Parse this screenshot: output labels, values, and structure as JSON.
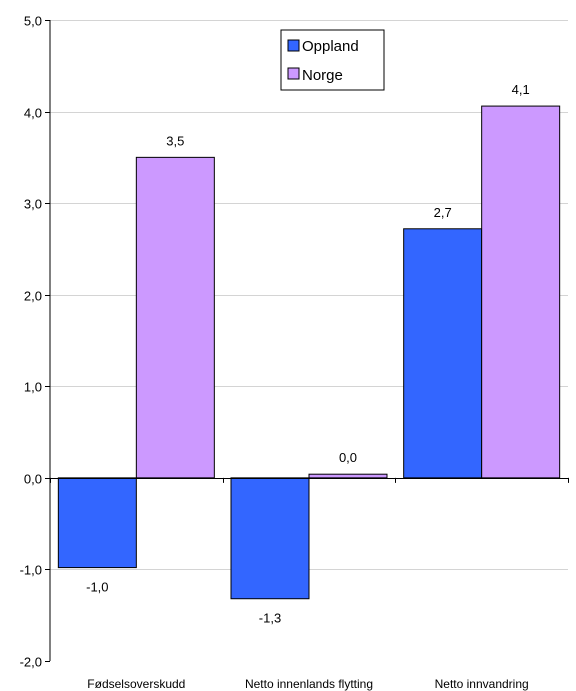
{
  "chart_data": {
    "type": "bar",
    "title": "",
    "xlabel": "",
    "ylabel": "",
    "ylim": [
      -2.0,
      5.0
    ],
    "ytick_step": 1.0,
    "grid": true,
    "legend_position": "top-center",
    "categories": [
      "Fødselsoverskudd",
      "Netto innenlands flytting",
      "Netto innvandring"
    ],
    "series": [
      {
        "name": "Oppland",
        "color": "#3366ff",
        "values": [
          -0.98,
          -1.32,
          2.72
        ],
        "labels": [
          "-1,0",
          "-1,3",
          "2,7"
        ]
      },
      {
        "name": "Norge",
        "color": "#cc99ff",
        "values": [
          3.5,
          0.04,
          4.06
        ],
        "labels": [
          "3,5",
          "0,0",
          "4,1"
        ]
      }
    ],
    "ytick_labels": [
      "-2,0",
      "-1,0",
      "0,0",
      "1,0",
      "2,0",
      "3,0",
      "4,0",
      "5,0"
    ]
  }
}
